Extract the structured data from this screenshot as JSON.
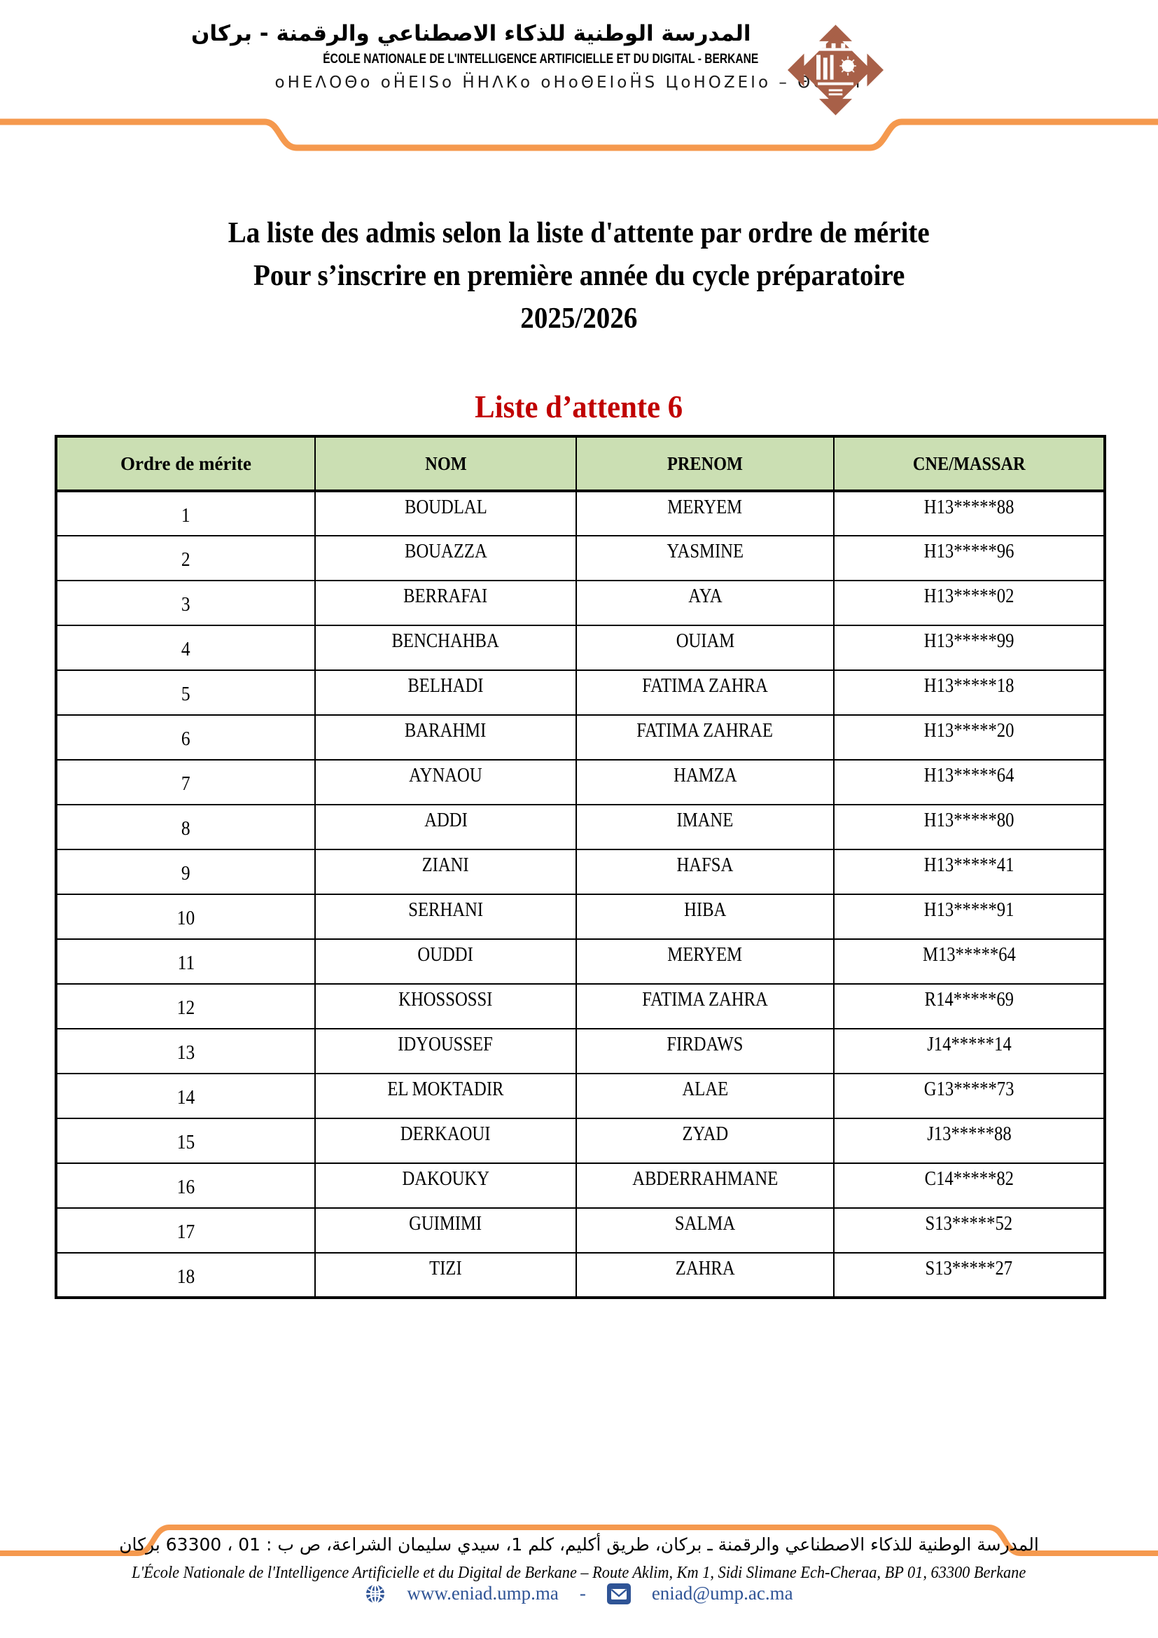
{
  "header": {
    "school_name_ar": "المدرسة الوطنية للذكاء الاصطناعي والرقمنة - بركان",
    "school_name_fr": "ÉCOLE NATIONALE DE L'INTELLIGENCE ARTIFICIELLE ET DU DIGITAL - BERKANE",
    "school_name_tifinagh": "оНΕΛΟΘо  оН̈ΕΙЅо  Н̈НΛКо  оНоΘΕΙоН̈Ѕ  ЦоНΟΖΕΙо  –  ΘΟКоΙ",
    "logo_name": "ump-university-diamond-logo"
  },
  "title": {
    "line1": "La liste des admis selon la liste d'attente par ordre de mérite",
    "line2": "Pour s’inscrire en première année du cycle préparatoire",
    "line3": "2025/2026"
  },
  "list_title": "Liste d’attente 6",
  "table": {
    "columns": [
      "Ordre de mérite",
      "NOM",
      "PRENOM",
      "CNE/MASSAR"
    ],
    "rows": [
      {
        "order": "1",
        "nom": "BOUDLAL",
        "prenom": "MERYEM",
        "cne": "H13*****88"
      },
      {
        "order": "2",
        "nom": "BOUAZZA",
        "prenom": "YASMINE",
        "cne": "H13*****96"
      },
      {
        "order": "3",
        "nom": "BERRAFAI",
        "prenom": "AYA",
        "cne": "H13*****02"
      },
      {
        "order": "4",
        "nom": "BENCHAHBA",
        "prenom": "OUIAM",
        "cne": "H13*****99"
      },
      {
        "order": "5",
        "nom": "BELHADI",
        "prenom": "FATIMA ZAHRA",
        "cne": "H13*****18"
      },
      {
        "order": "6",
        "nom": "BARAHMI",
        "prenom": "FATIMA ZAHRAE",
        "cne": "H13*****20"
      },
      {
        "order": "7",
        "nom": "AYNAOU",
        "prenom": "HAMZA",
        "cne": "H13*****64"
      },
      {
        "order": "8",
        "nom": "ADDI",
        "prenom": "IMANE",
        "cne": "H13*****80"
      },
      {
        "order": "9",
        "nom": "ZIANI",
        "prenom": "HAFSA",
        "cne": "H13*****41"
      },
      {
        "order": "10",
        "nom": "SERHANI",
        "prenom": "HIBA",
        "cne": "H13*****91"
      },
      {
        "order": "11",
        "nom": "OUDDI",
        "prenom": "MERYEM",
        "cne": "M13*****64"
      },
      {
        "order": "12",
        "nom": "KHOSSOSSI",
        "prenom": "FATIMA ZAHRA",
        "cne": "R14*****69"
      },
      {
        "order": "13",
        "nom": "IDYOUSSEF",
        "prenom": "FIRDAWS",
        "cne": "J14*****14"
      },
      {
        "order": "14",
        "nom": "EL MOKTADIR",
        "prenom": "ALAE",
        "cne": "G13*****73"
      },
      {
        "order": "15",
        "nom": "DERKAOUI",
        "prenom": "ZYAD",
        "cne": "J13*****88"
      },
      {
        "order": "16",
        "nom": "DAKOUKY",
        "prenom": "ABDERRAHMANE",
        "cne": "C14*****82"
      },
      {
        "order": "17",
        "nom": "GUIMIMI",
        "prenom": "SALMA",
        "cne": "S13*****52"
      },
      {
        "order": "18",
        "nom": "TIZI",
        "prenom": "ZAHRA",
        "cne": "S13*****27"
      }
    ]
  },
  "footer": {
    "address_ar": "المدرسة الوطنية للذكاء الاصطناعي والرقمنة ـ بركان، طريق أكليم، كلم 1، سيدي سليمان الشراعة، ص ب : 01 ، 63300 بركان",
    "address_fr": "L'École Nationale de l'Intelligence Artificielle et du Digital de Berkane – Route Aklim, Km 1, Sidi Slimane Ech-Cheraa, BP 01, 63300 Berkane",
    "website": "www.eniad.ump.ma",
    "separator": "-",
    "email": "eniad@ump.ac.ma"
  },
  "colors": {
    "accent_orange": "#F5994E",
    "table_header_green": "#CBDFB3",
    "list_title_red": "#C00000",
    "link_blue": "#2F5496",
    "logo_terracotta": "#A86048"
  }
}
